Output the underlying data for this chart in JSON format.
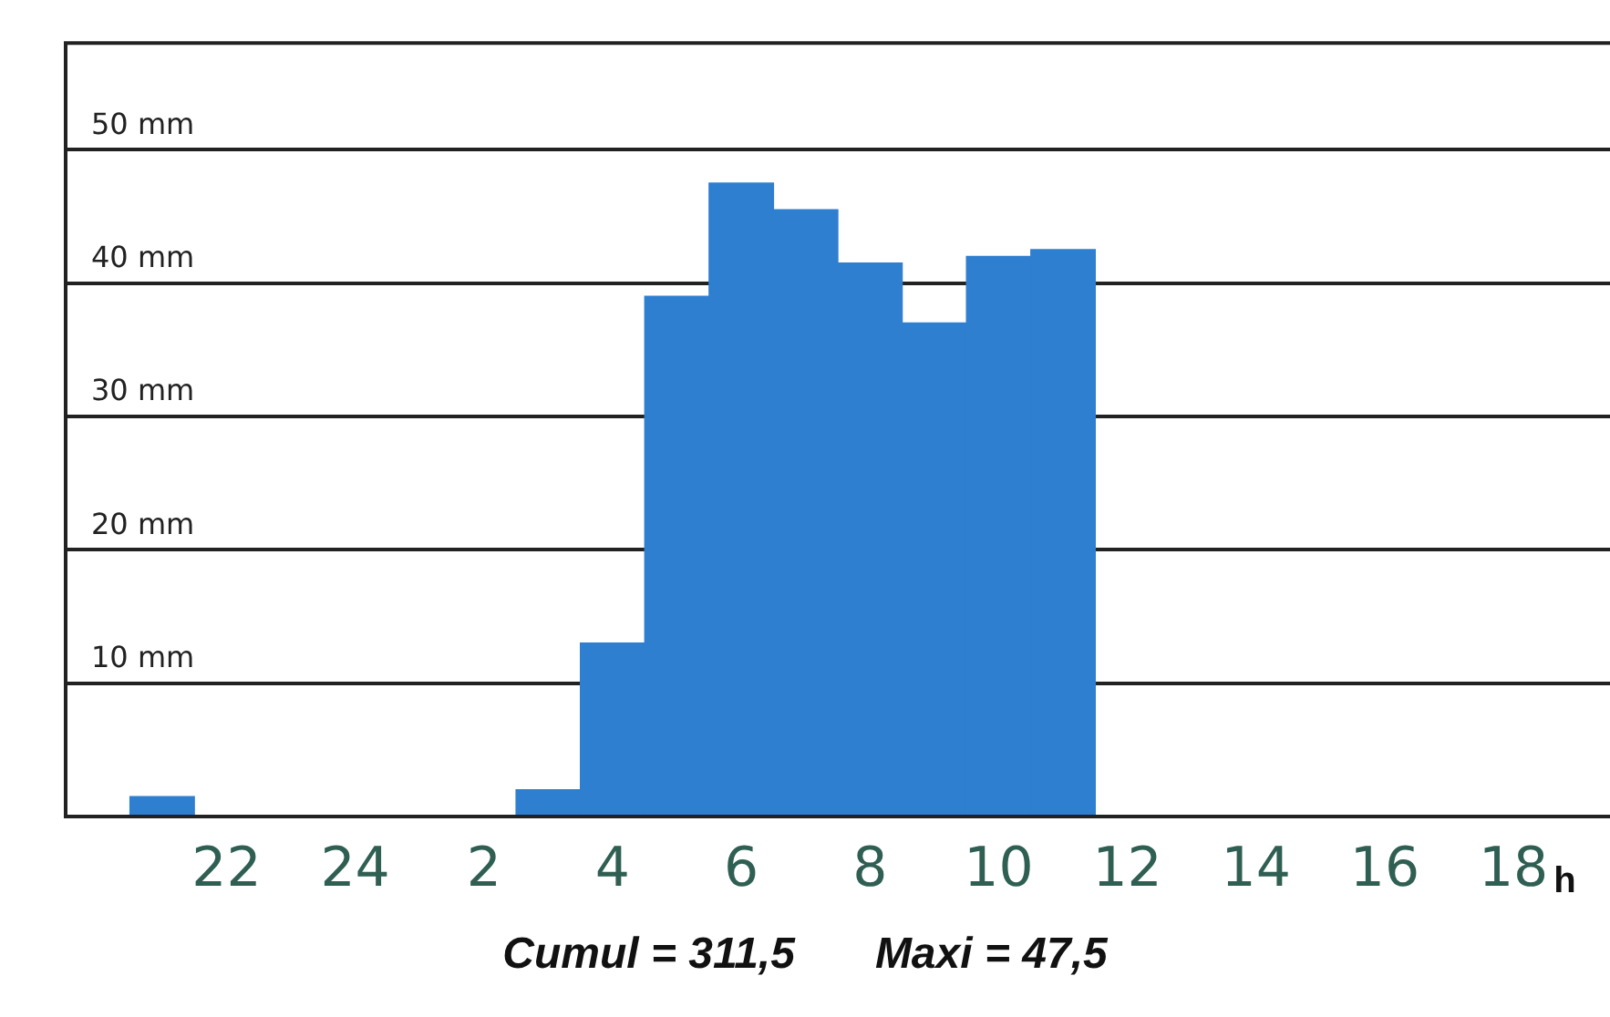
{
  "chart_data": {
    "type": "bar",
    "xlabel": "h",
    "categories": [
      null,
      null,
      "22",
      null,
      "24",
      null,
      "2",
      null,
      "4",
      null,
      "6",
      null,
      "8",
      null,
      "10",
      null,
      "12",
      null,
      "14",
      null,
      "16",
      null,
      "18",
      null
    ],
    "values": [
      0,
      1.5,
      0,
      0,
      0,
      0,
      0,
      2,
      13,
      39,
      47.5,
      45.5,
      41.5,
      37,
      42,
      42.5,
      0,
      0,
      0,
      0,
      0,
      0,
      0,
      0
    ],
    "color": "#2f7fd0",
    "ylim": [
      0,
      58
    ],
    "yticks": [
      {
        "value": 10,
        "label": "10 mm"
      },
      {
        "value": 20,
        "label": "20 mm"
      },
      {
        "value": 30,
        "label": "30 mm"
      },
      {
        "value": 40,
        "label": "40 mm"
      },
      {
        "value": 50,
        "label": "50 mm"
      }
    ],
    "grid": "y",
    "annotations": [
      "Cumul = 311,5",
      "Maxi = 47,5"
    ]
  }
}
